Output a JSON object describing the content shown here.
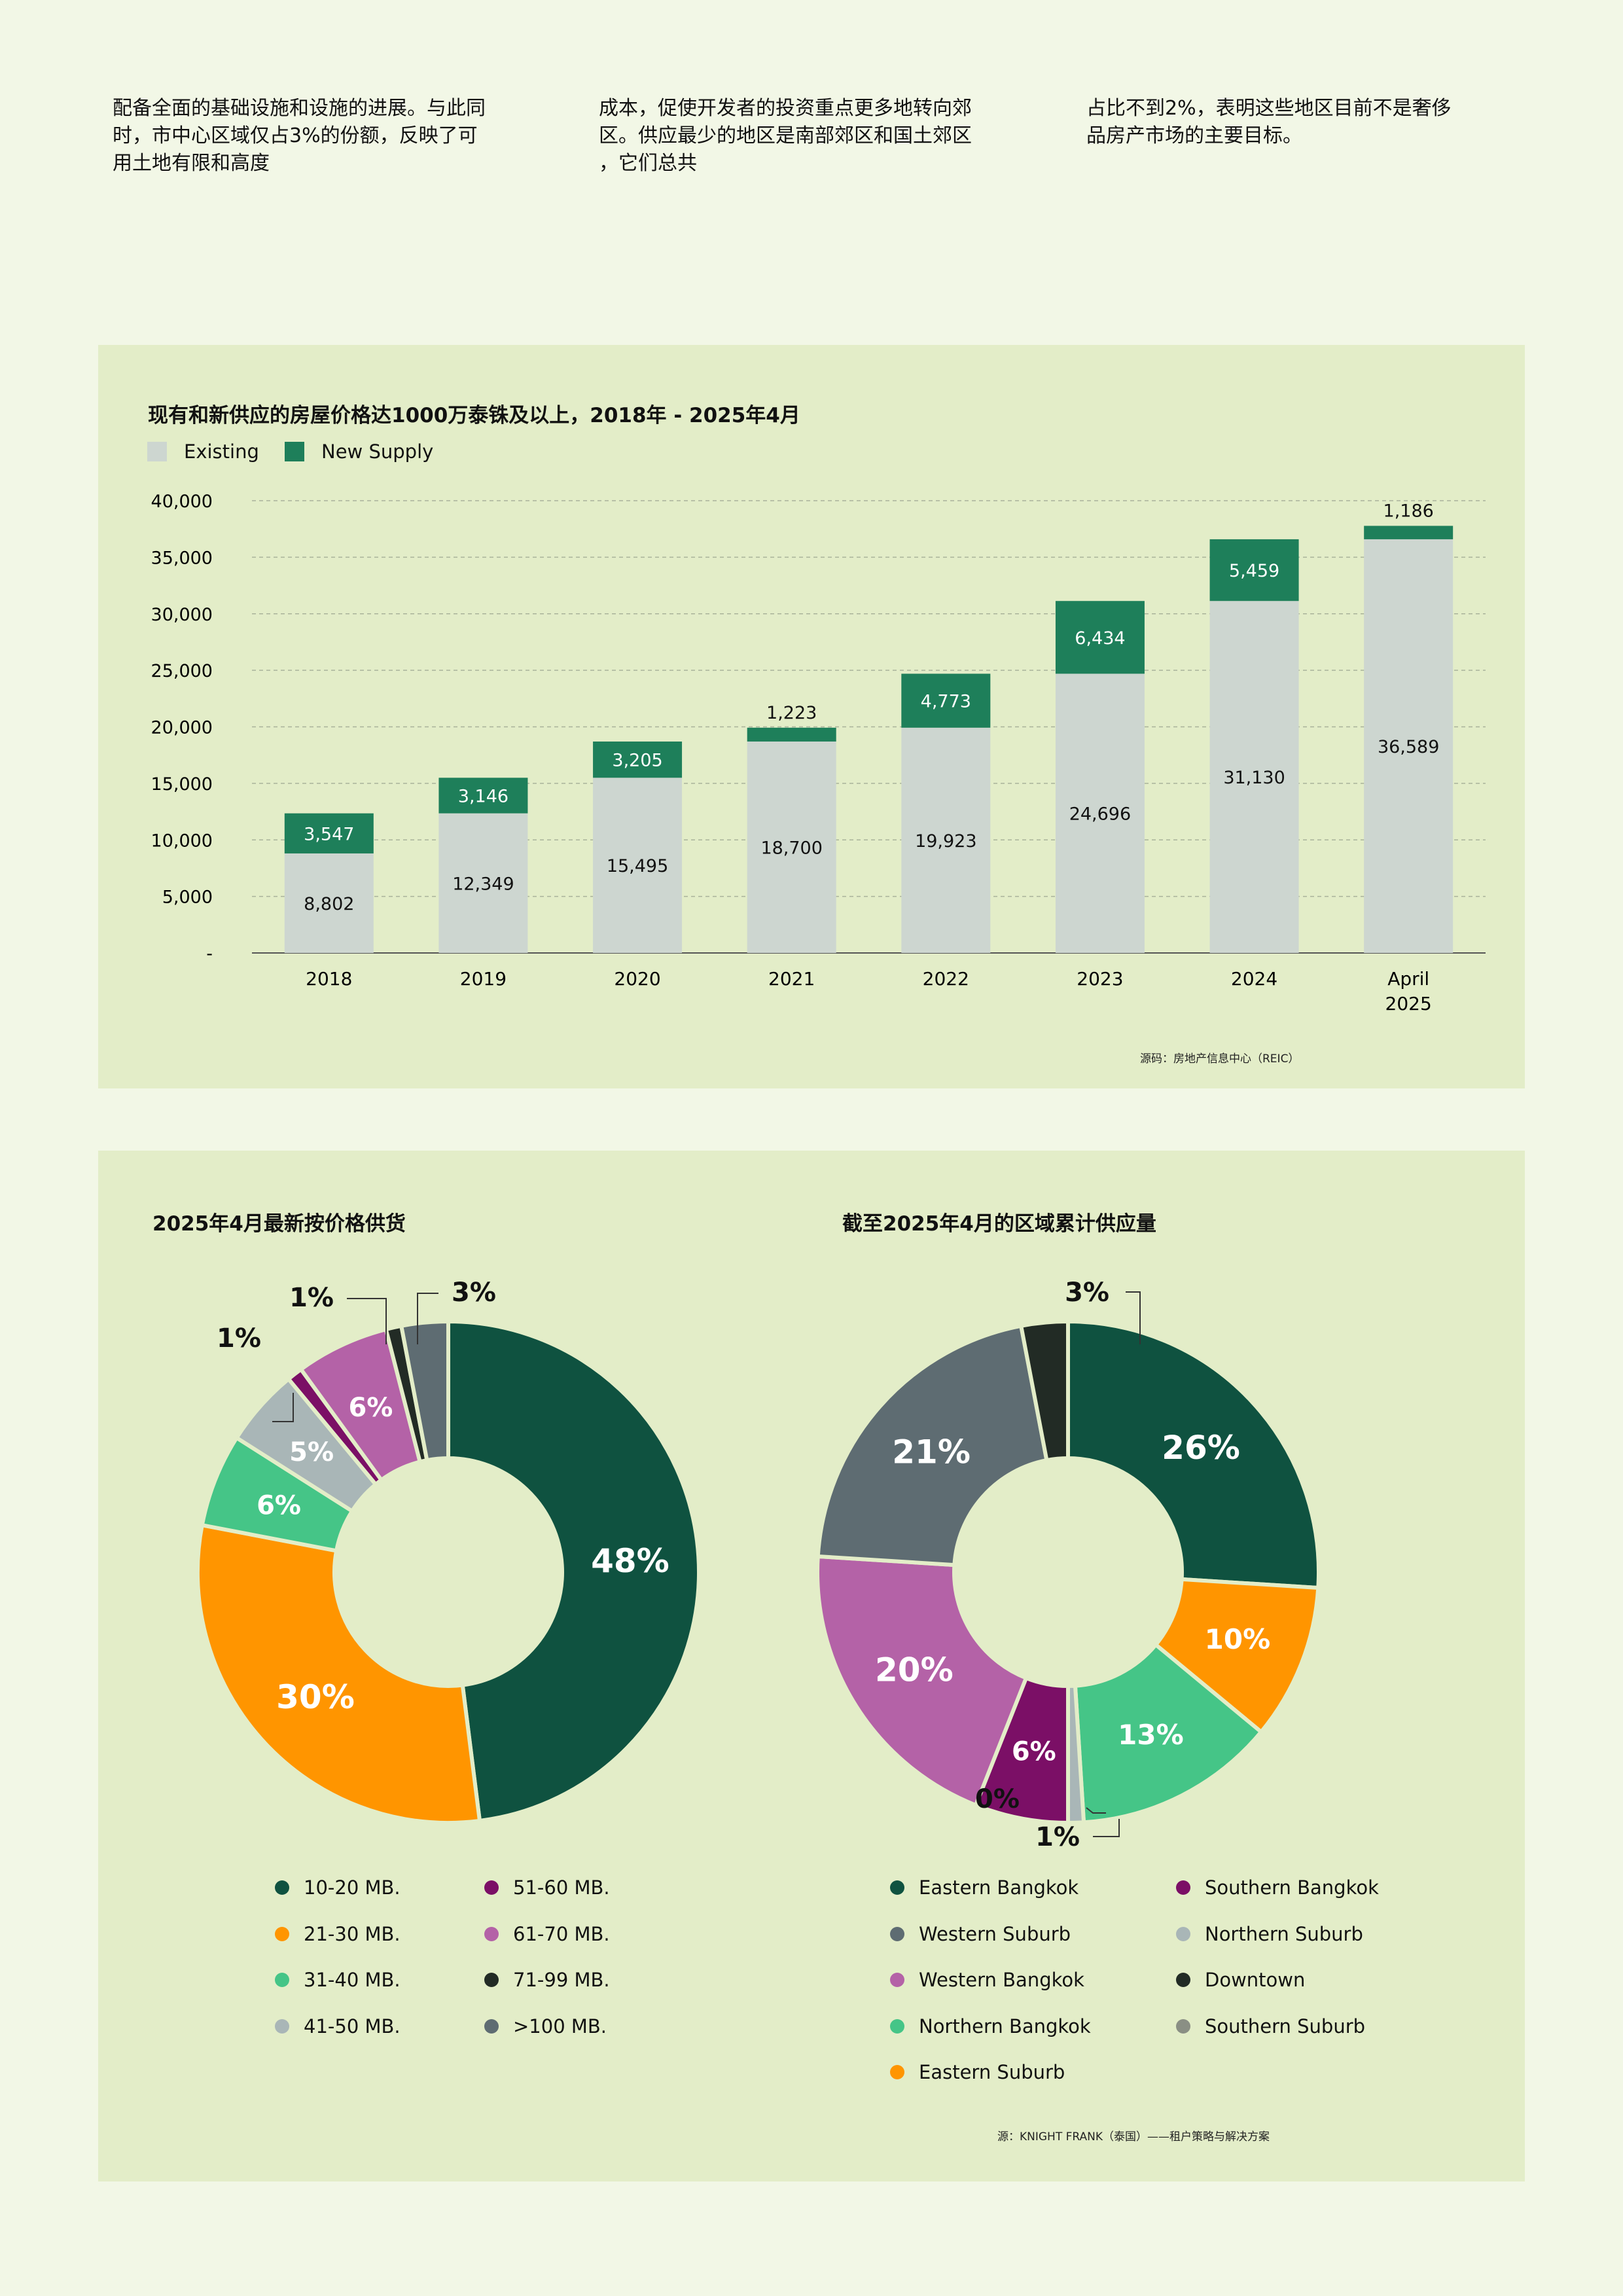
{
  "intro": {
    "col1": "配备全面的基础设施和设施的进展。与此同\n时，市中心区域仅占3%的份额，反映了可\n用土地有限和高度",
    "col2": "成本，促使开发者的投资重点更多地转向郊\n区。供应最少的地区是南部郊区和国土郊区\n，它们总共",
    "col3": "占比不到2%，表明这些地区目前不是奢侈\n品房产市场的主要目标。"
  },
  "colors": {
    "page_bg": "#f2f7e6",
    "panel_bg": "#e3edc8",
    "existing": "#cdd6d0",
    "new_supply": "#1e7f5a"
  },
  "chart_data": [
    {
      "type": "bar",
      "stacked": true,
      "title": "现有和新供应的房屋价格达1000万泰铢及以上，2018年 - 2025年4月",
      "categories": [
        "2018",
        "2019",
        "2020",
        "2021",
        "2022",
        "2023",
        "2024",
        "April 2025"
      ],
      "series": [
        {
          "name": "Existing",
          "color": "#cdd6d0",
          "values": [
            8802,
            12349,
            15495,
            18700,
            19923,
            24696,
            31130,
            36589
          ],
          "labels": [
            "8,802",
            "12,349",
            "15,495",
            "18,700",
            "19,923",
            "24,696",
            "31,130",
            "36,589"
          ]
        },
        {
          "name": "New Supply",
          "color": "#1e7f5a",
          "values": [
            3547,
            3146,
            3205,
            1223,
            4773,
            6434,
            5459,
            1186
          ],
          "labels": [
            "3,547",
            "3,146",
            "3,205",
            "1,223",
            "4,773",
            "6,434",
            "5,459",
            "1,186"
          ]
        }
      ],
      "yticks": [
        "-",
        "5,000",
        "10,000",
        "15,000",
        "20,000",
        "25,000",
        "30,000",
        "35,000",
        "40,000"
      ],
      "ylim": [
        0,
        40000
      ],
      "grid": true,
      "legend": "top-left",
      "source": "源码：房地产信息中心（REIC）"
    },
    {
      "type": "pie",
      "donut": true,
      "title": "2025年4月最新按价格供货",
      "slices": [
        {
          "name": "10-20 MB.",
          "value": 48,
          "label": "48%",
          "color": "#0f5240"
        },
        {
          "name": "21-30 MB.",
          "value": 30,
          "label": "30%",
          "color": "#ff9500"
        },
        {
          "name": "31-40 MB.",
          "value": 6,
          "label": "6%",
          "color": "#45c587"
        },
        {
          "name": "41-50 MB.",
          "value": 5,
          "label": "5%",
          "color": "#a9b6b7"
        },
        {
          "name": "51-60 MB.",
          "value": 1,
          "label": "1%",
          "color": "#7b0f66"
        },
        {
          "name": "61-70 MB.",
          "value": 6,
          "label": "6%",
          "color": "#b462a7"
        },
        {
          "name": "71-99 MB.",
          "value": 1,
          "label": "1%",
          "color": "#222b25"
        },
        {
          "name": ">100 MB.",
          "value": 3,
          "label": "3%",
          "color": "#5e6c72"
        }
      ],
      "legend": "bottom"
    },
    {
      "type": "pie",
      "donut": true,
      "title": "截至2025年4月的区域累计供应量",
      "slices": [
        {
          "name": "Eastern Bangkok",
          "value": 26,
          "label": "26%",
          "color": "#0f5240"
        },
        {
          "name": "Eastern Suburb",
          "value": 10,
          "label": "10%",
          "color": "#ff9500"
        },
        {
          "name": "Northern Bangkok",
          "value": 13,
          "label": "13%",
          "color": "#45c587"
        },
        {
          "name": "Northern Suburb",
          "value": 1,
          "label": "1%",
          "color": "#a9b6b7"
        },
        {
          "name": "Southern Bangkok",
          "value": 6,
          "label": "6%",
          "color": "#7b0f66"
        },
        {
          "name": "Southern Suburb",
          "value": 0,
          "label": "0%",
          "color": "#8a8f84"
        },
        {
          "name": "Western Bangkok",
          "value": 20,
          "label": "20%",
          "color": "#b462a7"
        },
        {
          "name": "Western Suburb",
          "value": 21,
          "label": "21%",
          "color": "#5e6c72"
        },
        {
          "name": "Downtown",
          "value": 3,
          "label": "3%",
          "color": "#222b25"
        }
      ],
      "legend_order": [
        "Eastern Bangkok",
        "Southern Bangkok",
        "Western Suburb",
        "Northern Suburb",
        "Western Bangkok",
        "Downtown",
        "Northern Bangkok",
        "Southern Suburb",
        "Eastern Suburb"
      ],
      "legend": "bottom",
      "source": "源：KNIGHT FRANK（泰国）——租户策略与解决方案"
    }
  ]
}
